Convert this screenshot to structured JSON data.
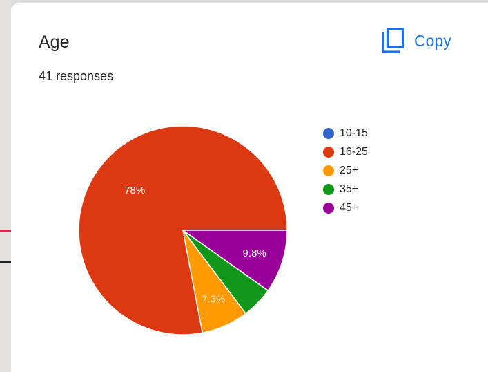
{
  "card": {
    "title": "Age",
    "responses": "41 responses",
    "copy_label": "Copy"
  },
  "icons": {
    "copy": "copy-icon"
  },
  "colors": {
    "accent": "#1a73e8",
    "series": [
      "#3366cc",
      "#dc3912",
      "#ff9900",
      "#109618",
      "#990099"
    ]
  },
  "chart_data": {
    "type": "pie",
    "title": "Age",
    "subtitle": "41 responses",
    "categories": [
      "10-15",
      "16-25",
      "25+",
      "35+",
      "45+"
    ],
    "values": [
      0,
      78,
      7.3,
      4.9,
      9.8
    ],
    "slice_labels": [
      "",
      "78%",
      "7.3%",
      "",
      "9.8%"
    ],
    "legend_position": "right"
  }
}
